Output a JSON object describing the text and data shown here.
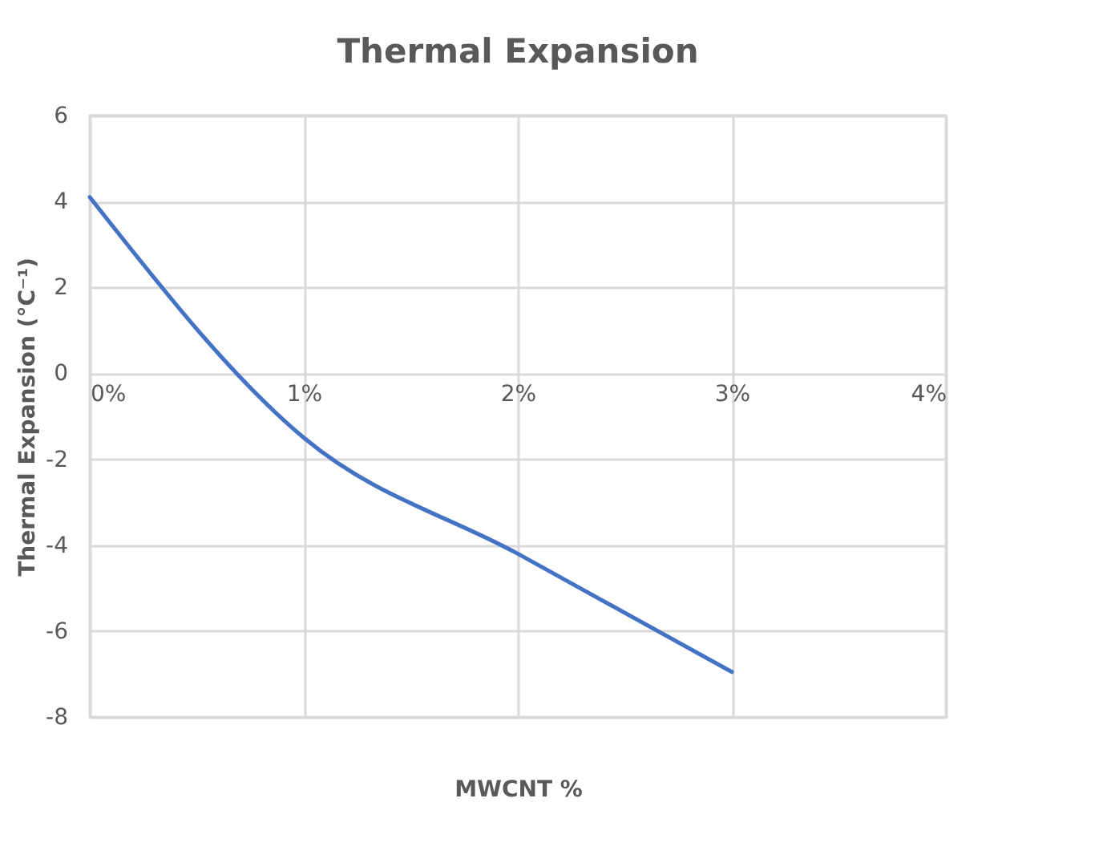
{
  "chart_data": {
    "type": "line",
    "title": "Thermal Expansion",
    "xlabel": "MWCNT %",
    "ylabel": "Thermal Expansion (°C⁻¹)",
    "x": [
      0,
      1,
      2,
      3
    ],
    "series": [
      {
        "color": "#4472c4",
        "values": [
          4.1,
          -1.5,
          -4.2,
          -6.95
        ]
      }
    ],
    "xlim": [
      0,
      4
    ],
    "xticks": [
      {
        "value": 0,
        "label": "0%"
      },
      {
        "value": 1,
        "label": "1%"
      },
      {
        "value": 2,
        "label": "2%"
      },
      {
        "value": 3,
        "label": "3%"
      },
      {
        "value": 4,
        "label": "4%"
      }
    ],
    "ylim": [
      -8,
      6
    ],
    "yticks": [
      -8,
      -6,
      -4,
      -2,
      0,
      2,
      4,
      6
    ],
    "grid": true,
    "marker": "none",
    "line_style": "solid"
  }
}
